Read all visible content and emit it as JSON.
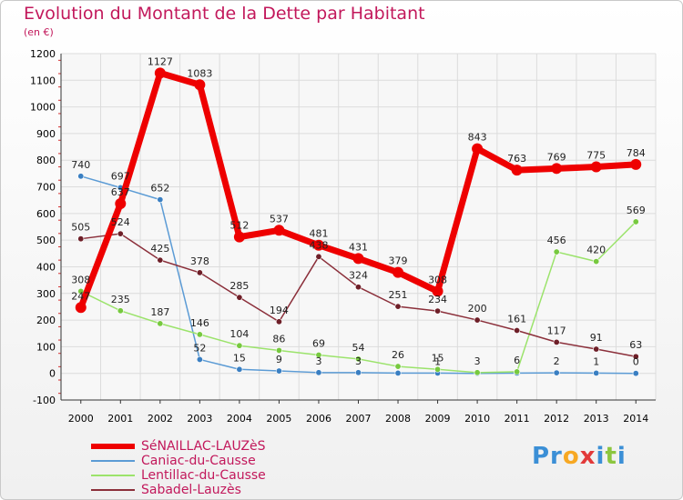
{
  "title": "Evolution du Montant de la Dette par Habitant",
  "subtitle": "(en €)",
  "logo": {
    "text_parts": [
      {
        "t": "Pr",
        "color": "#3b8fd6"
      },
      {
        "t": "o",
        "color": "#f7a823"
      },
      {
        "t": "x",
        "color": "#e23a3a"
      },
      {
        "t": "i",
        "color": "#3b8fd6"
      },
      {
        "t": "t",
        "color": "#8cc63f"
      },
      {
        "t": "i",
        "color": "#3b8fd6"
      }
    ]
  },
  "chart_data": {
    "type": "line",
    "x": [
      "2000",
      "2001",
      "2002",
      "2003",
      "2004",
      "2005",
      "2006",
      "2007",
      "2008",
      "2009",
      "2010",
      "2011",
      "2012",
      "2013",
      "2014"
    ],
    "ylim": [
      -100,
      1200
    ],
    "yticks": [
      -100,
      0,
      100,
      200,
      300,
      400,
      500,
      600,
      700,
      800,
      900,
      1000,
      1100,
      1200
    ],
    "ytick_labels": [
      "-100",
      "0",
      "100",
      "200",
      "300",
      "400",
      "500",
      "600",
      "700",
      "800",
      "900",
      "1000",
      "1100",
      "1200"
    ],
    "grid": true,
    "series": [
      {
        "name": "Caniac-du-Causse",
        "color": "#5b9bd5",
        "marker": "#3a7fc2",
        "width": 1.5,
        "values": [
          740,
          697,
          652,
          52,
          15,
          9,
          3,
          3,
          1,
          1,
          0,
          1,
          2,
          1,
          0
        ],
        "labels": [
          "740",
          "697",
          "652",
          "52",
          "15",
          "9",
          "3",
          "3",
          "",
          "1",
          "",
          "",
          "2",
          "1",
          "0"
        ]
      },
      {
        "name": "Lentillac-du-Causse",
        "color": "#9be36b",
        "marker": "#77c93f",
        "width": 1.5,
        "values": [
          308,
          235,
          187,
          146,
          104,
          86,
          69,
          54,
          26,
          15,
          3,
          6,
          456,
          420,
          569
        ],
        "labels": [
          "308",
          "235",
          "187",
          "146",
          "104",
          "86",
          "69",
          "54",
          "26",
          "15",
          "3",
          "6",
          "456",
          "420",
          "569"
        ]
      },
      {
        "name": "Sabadel-Lauzès",
        "color": "#8b2f3a",
        "marker": "#6e1f28",
        "width": 1.5,
        "values": [
          505,
          524,
          425,
          378,
          285,
          194,
          438,
          324,
          251,
          234,
          200,
          161,
          117,
          91,
          63
        ],
        "labels": [
          "505",
          "524",
          "425",
          "378",
          "285",
          "194",
          "438",
          "324",
          "251",
          "234",
          "200",
          "161",
          "117",
          "91",
          "63"
        ]
      },
      {
        "name": "SéNAILLAC-LAUZèS",
        "color": "#ee0000",
        "marker": "#ee0000",
        "width": 7,
        "values": [
          247,
          637,
          1127,
          1083,
          512,
          537,
          481,
          431,
          379,
          308,
          843,
          763,
          769,
          775,
          784
        ],
        "labels": [
          "247",
          "637",
          "1127",
          "1083",
          "512",
          "537",
          "481",
          "431",
          "379",
          "308",
          "843",
          "763",
          "769",
          "775",
          "784"
        ]
      }
    ]
  },
  "legend_entries": [
    {
      "label": "SéNAILLAC-LAUZèS",
      "color": "#ee0000",
      "width": 6
    },
    {
      "label": "Caniac-du-Causse",
      "color": "#5b9bd5",
      "width": 2
    },
    {
      "label": "Lentillac-du-Causse",
      "color": "#9be36b",
      "width": 2
    },
    {
      "label": "Sabadel-Lauzès",
      "color": "#8b2f3a",
      "width": 2
    }
  ]
}
